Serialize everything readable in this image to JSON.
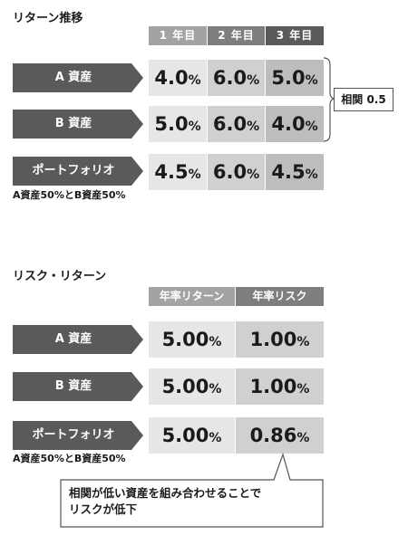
{
  "section1": {
    "title": "リターン推移",
    "columns": [
      "1 年目",
      "2 年目",
      "3 年目"
    ],
    "rows": [
      {
        "label": "A 資産",
        "values": [
          "4.0",
          "6.0",
          "5.0"
        ]
      },
      {
        "label": "B 資産",
        "values": [
          "5.0",
          "6.0",
          "4.0"
        ]
      },
      {
        "label": "ポートフォリオ",
        "values": [
          "4.5",
          "6.0",
          "4.5"
        ]
      }
    ],
    "portfolio_note": "A資産50%とB資産50%",
    "correlation_label": "相関 0.5"
  },
  "section2": {
    "title": "リスク・リターン",
    "columns": [
      "年率リターン",
      "年率リスク"
    ],
    "rows": [
      {
        "label": "A 資産",
        "values": [
          "5.00",
          "1.00"
        ]
      },
      {
        "label": "B 資産",
        "values": [
          "5.00",
          "1.00"
        ]
      },
      {
        "label": "ポートフォリオ",
        "values": [
          "5.00",
          "0.86"
        ]
      }
    ],
    "portfolio_note": "A資産50%とB資産50%",
    "callout_line1": "相関が低い資産を組み合わせることで",
    "callout_line2": "リスクが低下"
  },
  "unit": "%",
  "colors": {
    "arrow": "#5a5a5a",
    "header1": "#a3a3a3",
    "header2": "#7e7e7e",
    "header3": "#5a5a5a",
    "cell_light": "#e6e6e6",
    "cell_mid": "#d0d0d0",
    "cell_dark": "#bdbdbd"
  }
}
